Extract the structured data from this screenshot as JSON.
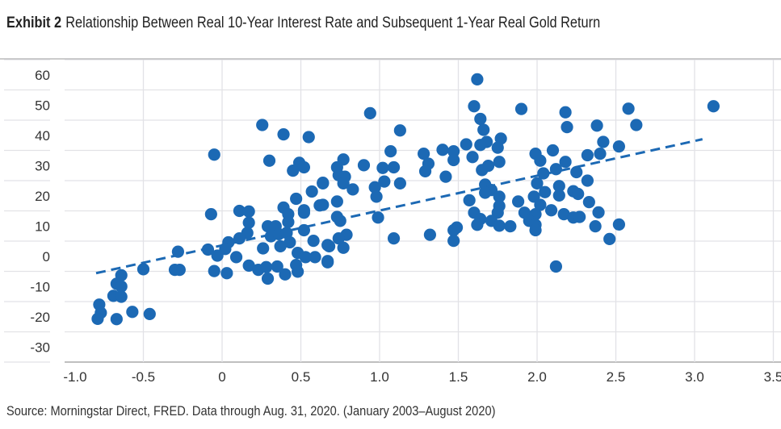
{
  "title": {
    "exhibit": "Exhibit 2",
    "text": "Relationship Between Real 10-Year Interest Rate and Subsequent 1-Year Real Gold Return"
  },
  "source": "Source: Morningstar Direct, FRED. Data through Aug. 31, 2020. (January 2003–August 2020)",
  "colors": {
    "dot": "#1c69b4",
    "grid": "#e2e2e6",
    "axis": "#999999"
  },
  "chart_data": {
    "type": "scatter",
    "title": "Relationship Between Real 10-Year Interest Rate and Subsequent 1-Year Real Gold Return",
    "xlabel": "",
    "ylabel": "",
    "xlim": [
      -1.0,
      3.5
    ],
    "ylim": [
      -35,
      65
    ],
    "x_ticks": [
      "-1.0",
      "-0.5",
      "0",
      "0.5",
      "1.0",
      "1.5",
      "2.0",
      "2.5",
      "3.0",
      "3.5"
    ],
    "x_tick_values": [
      -1.0,
      -0.5,
      0,
      0.5,
      1.0,
      1.5,
      2.0,
      2.5,
      3.0,
      3.5
    ],
    "y_ticks": [
      "60",
      "50",
      "40",
      "30",
      "20",
      "10",
      "0",
      "-10",
      "-20",
      "-30"
    ],
    "y_tick_values": [
      60,
      50,
      40,
      30,
      20,
      10,
      0,
      -10,
      -20,
      -30
    ],
    "grid": true,
    "trendline": {
      "style": "dashed",
      "x": [
        -0.8,
        3.05
      ],
      "y": [
        -5.6,
        38.7
      ]
    },
    "points": [
      [
        0.255,
        43.4
      ],
      [
        0.39,
        40.3
      ],
      [
        0.55,
        39.4
      ],
      [
        -0.05,
        33.6
      ],
      [
        0.3,
        31.6
      ],
      [
        0.49,
        30.9
      ],
      [
        0.52,
        29.4
      ],
      [
        0.45,
        28.3
      ],
      [
        0.64,
        24.3
      ],
      [
        0.57,
        21.4
      ],
      [
        0.47,
        19.0
      ],
      [
        0.62,
        16.8
      ],
      [
        0.52,
        15.2
      ],
      [
        0.52,
        14.4
      ],
      [
        0.39,
        16.1
      ],
      [
        0.42,
        13.9
      ],
      [
        -0.07,
        13.9
      ],
      [
        0.11,
        15.0
      ],
      [
        0.17,
        14.8
      ],
      [
        0.17,
        11.1
      ],
      [
        0.42,
        11.3
      ],
      [
        0.29,
        9.9
      ],
      [
        0.34,
        9.9
      ],
      [
        0.52,
        8.6
      ],
      [
        0.16,
        7.7
      ],
      [
        0.31,
        6.6
      ],
      [
        0.36,
        7.3
      ],
      [
        0.41,
        7.7
      ],
      [
        0.58,
        5.1
      ],
      [
        0.67,
        3.7
      ],
      [
        0.11,
        5.9
      ],
      [
        0.04,
        4.6
      ],
      [
        0.43,
        4.6
      ],
      [
        0.37,
        3.3
      ],
      [
        0.26,
        2.6
      ],
      [
        -0.28,
        1.5
      ],
      [
        -0.09,
        2.2
      ],
      [
        -0.03,
        0.2
      ],
      [
        0.02,
        2.4
      ],
      [
        0.09,
        -0.3
      ],
      [
        0.48,
        1.1
      ],
      [
        0.53,
        -0.3
      ],
      [
        0.59,
        -0.3
      ],
      [
        0.67,
        -1.6
      ],
      [
        0.17,
        -3.1
      ],
      [
        0.23,
        -4.5
      ],
      [
        0.28,
        -3.6
      ],
      [
        0.29,
        -7.4
      ],
      [
        0.35,
        -3.4
      ],
      [
        0.4,
        -6.0
      ],
      [
        0.47,
        -2.9
      ],
      [
        0.48,
        -5.1
      ],
      [
        -0.5,
        -4.3
      ],
      [
        -0.3,
        -4.5
      ],
      [
        -0.27,
        -4.5
      ],
      [
        -0.05,
        -4.9
      ],
      [
        0.03,
        -5.6
      ],
      [
        -0.64,
        -6.3
      ],
      [
        -0.67,
        -9.1
      ],
      [
        -0.64,
        -10.0
      ],
      [
        -0.69,
        -13.1
      ],
      [
        -0.64,
        -13.4
      ],
      [
        -0.78,
        -16.0
      ],
      [
        -0.77,
        -18.7
      ],
      [
        -0.79,
        -20.7
      ],
      [
        -0.67,
        -20.8
      ],
      [
        -0.57,
        -18.4
      ],
      [
        -0.46,
        -19.1
      ],
      [
        1.62,
        58.5
      ],
      [
        1.6,
        49.6
      ],
      [
        1.9,
        48.7
      ],
      [
        3.12,
        49.6
      ],
      [
        2.58,
        48.8
      ],
      [
        0.94,
        47.3
      ],
      [
        2.18,
        47.6
      ],
      [
        2.19,
        42.7
      ],
      [
        2.63,
        43.4
      ],
      [
        2.38,
        43.2
      ],
      [
        1.64,
        45.4
      ],
      [
        1.66,
        41.8
      ],
      [
        1.13,
        41.6
      ],
      [
        2.42,
        37.8
      ],
      [
        1.77,
        38.9
      ],
      [
        1.68,
        37.8
      ],
      [
        1.55,
        37.0
      ],
      [
        1.64,
        36.8
      ],
      [
        1.75,
        35.9
      ],
      [
        2.52,
        36.3
      ],
      [
        1.4,
        35.2
      ],
      [
        1.47,
        34.7
      ],
      [
        2.1,
        35.0
      ],
      [
        1.07,
        34.7
      ],
      [
        1.28,
        33.9
      ],
      [
        2.4,
        33.9
      ],
      [
        2.32,
        33.4
      ],
      [
        1.99,
        33.9
      ],
      [
        0.77,
        32.0
      ],
      [
        1.59,
        32.8
      ],
      [
        2.02,
        31.6
      ],
      [
        1.47,
        31.8
      ],
      [
        1.31,
        30.6
      ],
      [
        1.76,
        31.2
      ],
      [
        2.18,
        31.2
      ],
      [
        0.9,
        30.1
      ],
      [
        0.73,
        29.4
      ],
      [
        1.02,
        29.2
      ],
      [
        1.09,
        29.4
      ],
      [
        1.69,
        29.9
      ],
      [
        1.65,
        28.5
      ],
      [
        2.12,
        28.8
      ],
      [
        1.29,
        28.1
      ],
      [
        2.04,
        27.4
      ],
      [
        2.25,
        27.8
      ],
      [
        0.74,
        26.8
      ],
      [
        0.78,
        26.3
      ],
      [
        1.42,
        26.3
      ],
      [
        0.64,
        24.1
      ],
      [
        0.77,
        24.1
      ],
      [
        1.03,
        24.7
      ],
      [
        1.13,
        24.1
      ],
      [
        2.32,
        25.0
      ],
      [
        2.0,
        24.1
      ],
      [
        0.97,
        22.8
      ],
      [
        0.83,
        22.1
      ],
      [
        1.67,
        23.7
      ],
      [
        2.14,
        23.2
      ],
      [
        1.71,
        21.9
      ],
      [
        1.67,
        21.0
      ],
      [
        2.05,
        21.2
      ],
      [
        2.23,
        21.5
      ],
      [
        2.26,
        20.6
      ],
      [
        2.14,
        20.1
      ],
      [
        0.98,
        19.7
      ],
      [
        1.76,
        19.7
      ],
      [
        1.98,
        19.7
      ],
      [
        1.57,
        18.5
      ],
      [
        1.88,
        18.1
      ],
      [
        0.73,
        18.1
      ],
      [
        2.33,
        17.9
      ],
      [
        0.64,
        17.0
      ],
      [
        1.76,
        16.6
      ],
      [
        2.02,
        17.0
      ],
      [
        2.09,
        15.2
      ],
      [
        2.39,
        14.5
      ],
      [
        1.6,
        14.4
      ],
      [
        1.75,
        14.4
      ],
      [
        1.92,
        14.4
      ],
      [
        1.99,
        13.9
      ],
      [
        2.17,
        13.9
      ],
      [
        2.23,
        12.8
      ],
      [
        2.27,
        13.0
      ],
      [
        0.73,
        13.0
      ],
      [
        0.99,
        12.8
      ],
      [
        1.64,
        12.3
      ],
      [
        1.71,
        11.7
      ],
      [
        1.95,
        11.7
      ],
      [
        0.75,
        11.7
      ],
      [
        1.62,
        10.4
      ],
      [
        1.76,
        10.1
      ],
      [
        1.83,
        9.9
      ],
      [
        1.99,
        10.4
      ],
      [
        2.37,
        9.9
      ],
      [
        2.52,
        10.5
      ],
      [
        1.99,
        8.6
      ],
      [
        1.49,
        9.5
      ],
      [
        1.47,
        8.6
      ],
      [
        1.09,
        5.9
      ],
      [
        1.32,
        7.1
      ],
      [
        1.47,
        5.1
      ],
      [
        2.46,
        5.7
      ],
      [
        0.79,
        7.1
      ],
      [
        0.74,
        5.9
      ],
      [
        0.68,
        3.3
      ],
      [
        0.77,
        2.8
      ],
      [
        0.67,
        -2.0
      ],
      [
        2.12,
        -3.4
      ]
    ]
  }
}
